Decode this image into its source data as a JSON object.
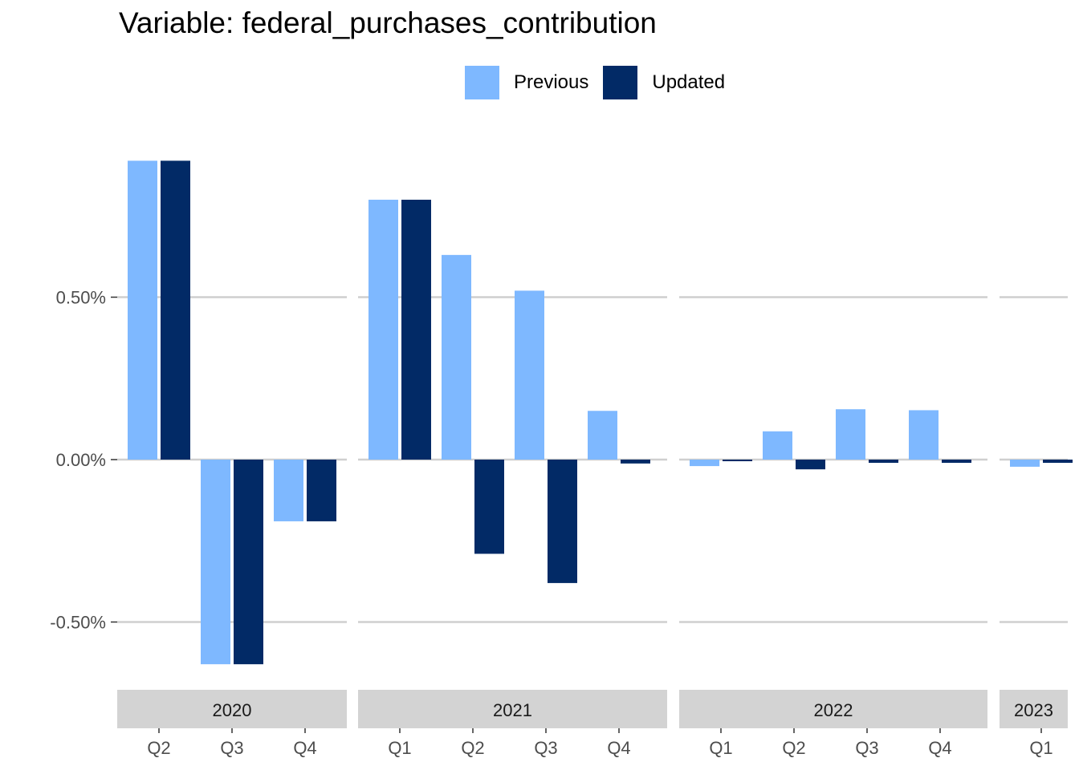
{
  "chart_data": {
    "type": "bar",
    "title": "Variable: federal_purchases_contribution",
    "xlabel": "",
    "ylabel": "",
    "ylim": [
      -0.7,
      0.95
    ],
    "y_ticks": [
      -0.5,
      0.0,
      0.5
    ],
    "y_tick_labels": [
      "-0.50%",
      "0.00%",
      "0.50%"
    ],
    "grid": "horizontal major",
    "legend_position": "top",
    "legend": [
      {
        "name": "Previous",
        "color": "#7EB8FF"
      },
      {
        "name": "Updated",
        "color": "#022A66"
      }
    ],
    "series": [
      {
        "name": "Previous",
        "color": "#7EB8FF"
      },
      {
        "name": "Updated",
        "color": "#022A66"
      }
    ],
    "panels": [
      {
        "year": "2020",
        "categories": [
          "Q2",
          "Q3",
          "Q4"
        ],
        "previous": [
          0.92,
          -0.63,
          -0.19
        ],
        "updated": [
          0.92,
          -0.63,
          -0.19
        ]
      },
      {
        "year": "2021",
        "categories": [
          "Q1",
          "Q2",
          "Q3",
          "Q4"
        ],
        "previous": [
          0.8,
          0.63,
          0.52,
          0.15
        ],
        "updated": [
          0.8,
          -0.29,
          -0.38,
          -0.012
        ]
      },
      {
        "year": "2022",
        "categories": [
          "Q1",
          "Q2",
          "Q3",
          "Q4"
        ],
        "previous": [
          -0.02,
          0.087,
          0.155,
          0.152
        ],
        "updated": [
          -0.005,
          -0.03,
          -0.01,
          -0.01
        ]
      },
      {
        "year": "2023",
        "categories": [
          "Q1"
        ],
        "previous": [
          -0.022
        ],
        "updated": [
          -0.01
        ]
      }
    ]
  }
}
